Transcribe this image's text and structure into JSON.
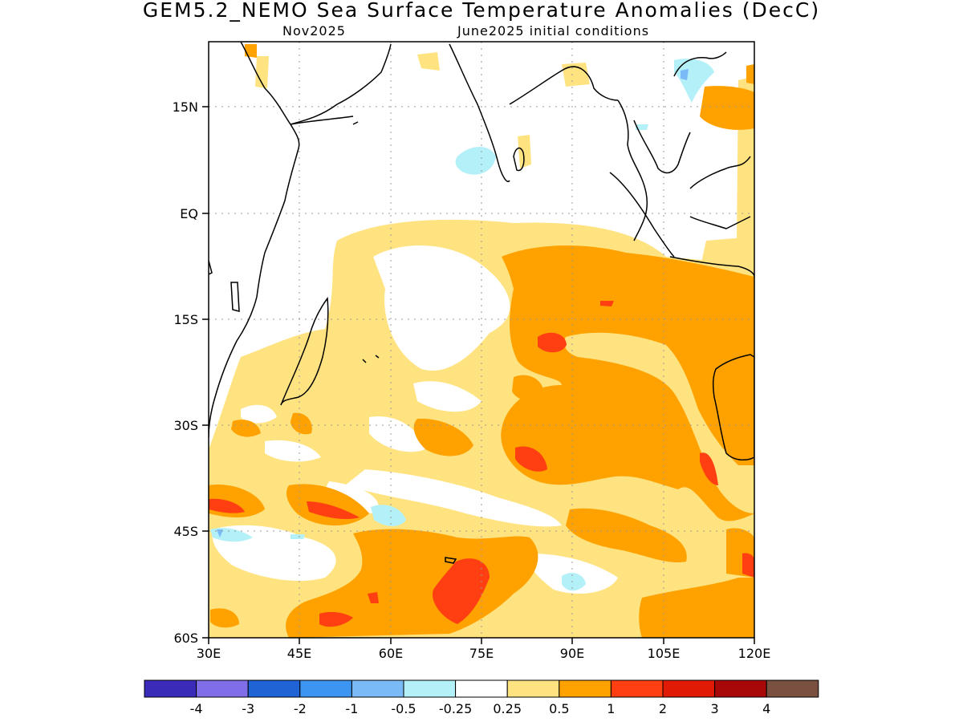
{
  "title": "GEM5.2_NEMO Sea Surface Temperature Anomalies (DecC)",
  "subtitle_left": "Nov2025",
  "subtitle_right": "June2025 initial conditions",
  "x_ticks": [
    "30E",
    "45E",
    "60E",
    "75E",
    "90E",
    "105E",
    "120E"
  ],
  "y_ticks": [
    "15N",
    "EQ",
    "15S",
    "30S",
    "45S",
    "60S"
  ],
  "colorbar": {
    "colors": [
      "#3a2bb8",
      "#7f6ee8",
      "#1f63d4",
      "#3d95f2",
      "#7abaf6",
      "#b4f0f8",
      "#ffffff",
      "#ffe380",
      "#ffa200",
      "#ff3f12",
      "#e01a05",
      "#a80808",
      "#7a5040"
    ],
    "labels": [
      "-4",
      "-3",
      "-2",
      "-1",
      "-0.5",
      "-0.25",
      "0.25",
      "0.5",
      "1",
      "2",
      "3",
      "4"
    ]
  }
}
